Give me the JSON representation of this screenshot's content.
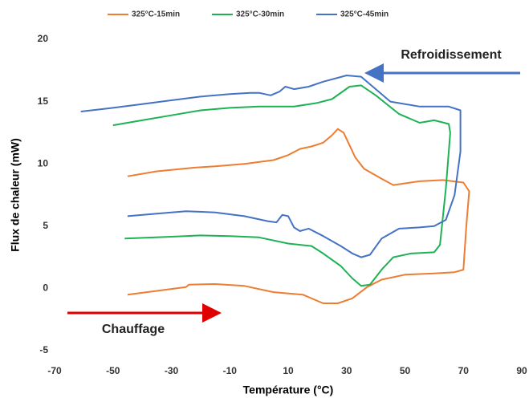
{
  "chart_data": {
    "type": "line",
    "xlabel": "Température (°C)",
    "ylabel": "Flux de chaleur (mW)",
    "xlim": [
      -70,
      90
    ],
    "xticks": [
      -70,
      -50,
      -30,
      -10,
      10,
      30,
      50,
      70,
      90
    ],
    "ylim": [
      -5,
      20
    ],
    "yticks": [
      -5,
      0,
      5,
      10,
      15,
      20
    ],
    "legend": "top",
    "annotations": [
      "Refroidissement",
      "Chauffage"
    ],
    "series": [
      {
        "name": "325°C-15min",
        "color": "#ed7d31",
        "x": [
          -45,
          -35,
          -25,
          -24,
          -15,
          -5,
          5,
          15,
          22,
          27,
          32,
          37,
          42,
          50,
          60,
          67,
          70,
          71,
          72,
          70,
          63,
          55,
          46,
          42,
          36,
          33,
          31,
          29,
          27,
          25,
          22,
          18,
          14,
          10,
          5,
          -5,
          -15,
          -22,
          -35,
          -45
        ],
        "values": [
          -0.5,
          -0.2,
          0.1,
          0.3,
          0.35,
          0.2,
          -0.3,
          -0.5,
          -1.2,
          -1.2,
          -0.8,
          0.1,
          0.7,
          1.1,
          1.2,
          1.3,
          1.5,
          5,
          7.8,
          8.5,
          8.7,
          8.6,
          8.3,
          8.8,
          9.6,
          10.5,
          11.5,
          12.5,
          12.8,
          12.3,
          11.7,
          11.4,
          11.2,
          10.7,
          10.3,
          10.0,
          9.8,
          9.7,
          9.4,
          9.0
        ]
      },
      {
        "name": "325°C-30min",
        "color": "#1fb254",
        "x": [
          -46,
          -30,
          -20,
          -10,
          0,
          10,
          18,
          22,
          28,
          32,
          35,
          38,
          42,
          46,
          52,
          60,
          62,
          64,
          65.5,
          65,
          60,
          55,
          48,
          40,
          35,
          31,
          25,
          20,
          12,
          0,
          -10,
          -20,
          -30,
          -40,
          -50
        ],
        "values": [
          4.0,
          4.15,
          4.25,
          4.2,
          4.1,
          3.6,
          3.4,
          2.8,
          1.8,
          0.8,
          0.2,
          0.3,
          1.5,
          2.5,
          2.8,
          2.9,
          3.5,
          8,
          12.5,
          13.2,
          13.5,
          13.3,
          14,
          15.5,
          16.3,
          16.2,
          15.2,
          14.9,
          14.6,
          14.6,
          14.5,
          14.3,
          13.9,
          13.5,
          13.1
        ]
      },
      {
        "name": "325°C-45min",
        "color": "#4472c4",
        "x": [
          -45,
          -35,
          -25,
          -15,
          -5,
          3,
          6,
          8,
          10,
          12,
          14,
          17,
          22,
          28,
          32,
          35,
          38,
          42,
          48,
          55,
          60,
          64,
          67,
          69,
          69,
          65,
          55,
          45,
          40,
          35,
          30,
          22,
          17,
          12,
          9,
          7,
          4,
          0,
          -3,
          -10,
          -20,
          -30,
          -40,
          -50,
          -61
        ],
        "values": [
          5.8,
          6.0,
          6.2,
          6.1,
          5.8,
          5.4,
          5.3,
          5.9,
          5.8,
          4.9,
          4.6,
          4.8,
          4.2,
          3.4,
          2.8,
          2.5,
          2.7,
          4.0,
          4.8,
          4.9,
          5.0,
          5.5,
          7.5,
          11,
          14.3,
          14.6,
          14.6,
          15,
          16,
          17.0,
          17.1,
          16.6,
          16.2,
          16.0,
          16.2,
          15.8,
          15.5,
          15.7,
          15.7,
          15.6,
          15.4,
          15.1,
          14.8,
          14.5,
          14.2
        ]
      }
    ]
  }
}
